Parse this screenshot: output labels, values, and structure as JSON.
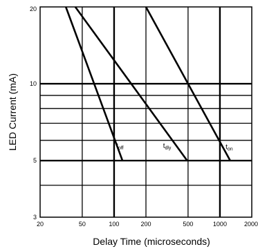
{
  "chart_data": {
    "type": "line",
    "xlabel": "Delay Time (microseconds)",
    "ylabel": "LED Current (mA)",
    "x_scale": "log",
    "y_scale": "log",
    "xlim": [
      20,
      2000
    ],
    "ylim": [
      3,
      20
    ],
    "x_ticks": [
      20,
      50,
      100,
      200,
      500,
      1000,
      2000
    ],
    "x_tick_labels": [
      "20",
      "50",
      "100",
      "200",
      "500",
      "1000",
      "2000"
    ],
    "y_ticks": [
      3,
      5,
      10,
      20
    ],
    "y_tick_labels": [
      "3",
      "5",
      "10",
      "20"
    ],
    "x_grid": [
      50,
      100,
      200,
      500,
      1000
    ],
    "x_grid_major": [
      100,
      1000
    ],
    "y_grid": [
      4,
      5,
      6,
      7,
      8,
      9,
      10
    ],
    "y_grid_major": [
      5,
      10
    ],
    "series": [
      {
        "key": "off",
        "label_main": "t",
        "label_sub": "off",
        "x": [
          35,
          120
        ],
        "y": [
          20,
          5
        ],
        "label_at": [
          105,
          5.6
        ]
      },
      {
        "key": "dly",
        "label_main": "t",
        "label_sub": "dly",
        "x": [
          43,
          490
        ],
        "y": [
          20,
          5
        ],
        "label_at": [
          290,
          5.6
        ]
      },
      {
        "key": "on",
        "label_main": "t",
        "label_sub": "on",
        "x": [
          200,
          1250
        ],
        "y": [
          20,
          5
        ],
        "label_at": [
          1130,
          5.55
        ]
      }
    ]
  }
}
